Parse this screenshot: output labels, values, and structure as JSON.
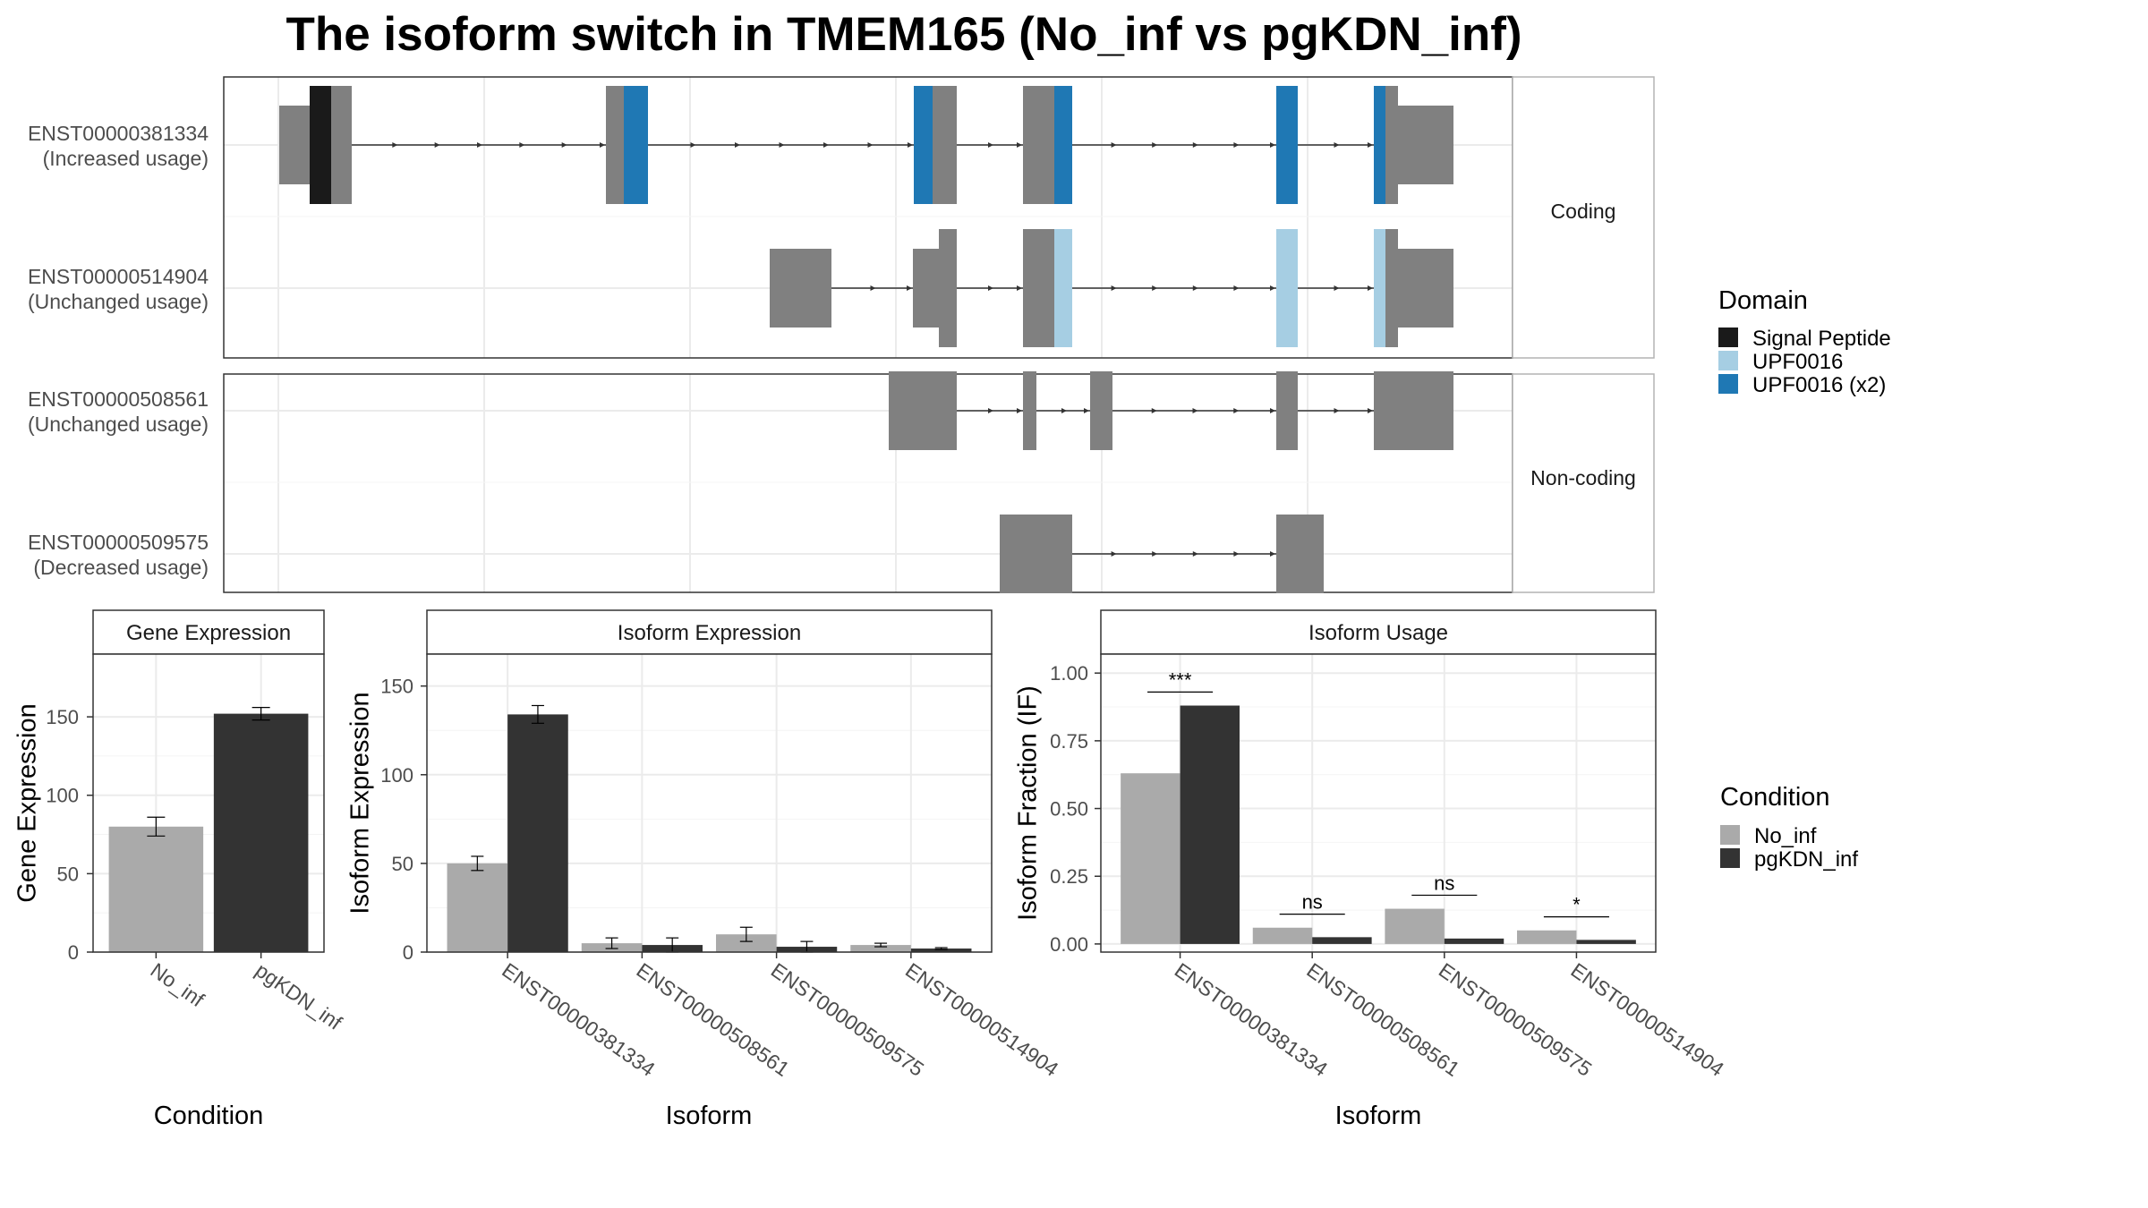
{
  "title": "The isoform switch in TMEM165 (No_inf vs pgKDN_inf)",
  "colors": {
    "exon": "#808080",
    "intron": "#333333",
    "domains": {
      "Signal Peptide": "#1a1a1a",
      "UPF0016": "#a6cee3",
      "UPF0016 (x2)": "#1f78b4"
    },
    "conditions": {
      "No_inf": "#aaaaaa",
      "pgKDN_inf": "#333333"
    },
    "strip_bg": "#ffffff",
    "grid": "#ebebeb",
    "panel_border": "#333333"
  },
  "structure": {
    "groups": [
      {
        "label": "Coding",
        "isoforms": [
          {
            "id": "ENST00000381334",
            "usage": "(Increased usage)"
          },
          {
            "id": "ENST00000514904",
            "usage": "(Unchanged usage)"
          }
        ]
      },
      {
        "label": "Non-coding",
        "isoforms": [
          {
            "id": "ENST00000508561",
            "usage": "(Unchanged usage)"
          },
          {
            "id": "ENST00000509575",
            "usage": "(Decreased usage)"
          }
        ]
      }
    ]
  },
  "legends": {
    "domain": {
      "title": "Domain",
      "items": [
        "Signal Peptide",
        "UPF0016",
        "UPF0016 (x2)"
      ]
    },
    "condition": {
      "title": "Condition",
      "items": [
        "No_inf",
        "pgKDN_inf"
      ]
    }
  },
  "chart_data": [
    {
      "type": "bar",
      "title": "Gene Expression",
      "xlabel": "Condition",
      "ylabel": "Gene Expression",
      "categories": [
        "No_inf",
        "pgKDN_inf"
      ],
      "values": [
        80,
        152
      ],
      "errors": [
        6,
        4
      ],
      "yticks": [
        0,
        50,
        100,
        150
      ],
      "ylim": [
        0,
        190
      ]
    },
    {
      "type": "bar",
      "title": "Isoform Expression",
      "xlabel": "Isoform",
      "ylabel": "Isoform Expression",
      "categories": [
        "ENST00000381334",
        "ENST00000508561",
        "ENST00000509575",
        "ENST00000514904"
      ],
      "series": [
        {
          "name": "No_inf",
          "values": [
            50,
            5,
            10,
            4
          ],
          "errors": [
            4,
            3,
            4,
            1
          ]
        },
        {
          "name": "pgKDN_inf",
          "values": [
            134,
            4,
            3,
            2
          ],
          "errors": [
            5,
            4,
            3,
            0.5
          ]
        }
      ],
      "yticks": [
        0,
        50,
        100,
        150
      ],
      "ylim": [
        0,
        168
      ]
    },
    {
      "type": "bar",
      "title": "Isoform Usage",
      "xlabel": "Isoform",
      "ylabel": "Isoform Fraction (IF)",
      "categories": [
        "ENST00000381334",
        "ENST00000508561",
        "ENST00000509575",
        "ENST00000514904"
      ],
      "series": [
        {
          "name": "No_inf",
          "values": [
            0.63,
            0.06,
            0.13,
            0.05
          ]
        },
        {
          "name": "pgKDN_inf",
          "values": [
            0.88,
            0.025,
            0.02,
            0.015
          ]
        }
      ],
      "significance": [
        "***",
        "ns",
        "ns",
        "*"
      ],
      "yticks": [
        0,
        0.25,
        0.5,
        0.75,
        1.0
      ],
      "ytick_labels": [
        "0.00",
        "0.25",
        "0.50",
        "0.75",
        "1.00"
      ],
      "ylim": [
        -0.03,
        1.07
      ]
    }
  ]
}
